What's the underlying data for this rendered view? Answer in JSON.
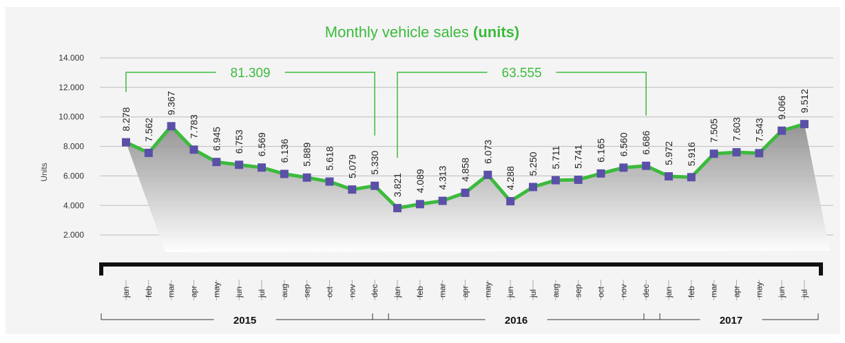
{
  "chart_data": {
    "type": "line",
    "title": "Monthly vehicle sales",
    "title_emphasis": "(units)",
    "y_label": "Units",
    "categories": [
      "jan",
      "feb",
      "mar",
      "apr",
      "may",
      "jun",
      "jul",
      "aug",
      "sep",
      "oct",
      "nov",
      "dec",
      "jan",
      "feb",
      "mar",
      "apr",
      "may",
      "jun",
      "jul",
      "aug",
      "sep",
      "oct",
      "nov",
      "dec",
      "jan",
      "feb",
      "mar",
      "apr",
      "may",
      "jun",
      "jul"
    ],
    "series": [
      {
        "name": "Units",
        "color": "#3dba3d",
        "marker_color": "#5a50a8",
        "values": [
          8278,
          7562,
          9367,
          7783,
          6945,
          6753,
          6569,
          6136,
          5889,
          5618,
          5079,
          5330,
          3821,
          4089,
          4313,
          4858,
          6073,
          4288,
          5250,
          5711,
          5741,
          6165,
          6560,
          6686,
          5972,
          5916,
          7505,
          7603,
          7543,
          9066,
          9512
        ],
        "value_labels": [
          "8.278",
          "7.562",
          "9.367",
          "7.783",
          "6.945",
          "6.753",
          "6.569",
          "6.136",
          "5.889",
          "5.618",
          "5.079",
          "5.330",
          "3.821",
          "4.089",
          "4.313",
          "4.858",
          "6.073",
          "4.288",
          "5.250",
          "5.711",
          "5.741",
          "6.165",
          "6.560",
          "6.686",
          "5.972",
          "5.916",
          "7.505",
          "7.603",
          "7.543",
          "9.066",
          "9.512"
        ]
      }
    ],
    "ylim": [
      0,
      14000
    ],
    "yticks": [
      {
        "value": 2000,
        "label": "2.000"
      },
      {
        "value": 4000,
        "label": "4.000"
      },
      {
        "value": 6000,
        "label": "6.000"
      },
      {
        "value": 8000,
        "label": "8.000"
      },
      {
        "value": 10000,
        "label": "10.000"
      },
      {
        "value": 12000,
        "label": "12.000"
      },
      {
        "value": 14000,
        "label": "14.000"
      }
    ],
    "grid": true,
    "x_groups": [
      {
        "label": "2015",
        "span": [
          0,
          11
        ]
      },
      {
        "label": "2016",
        "span": [
          12,
          23
        ]
      },
      {
        "label": "2017",
        "span": [
          24,
          30
        ]
      }
    ],
    "annotations": [
      {
        "label": "81.309",
        "span": [
          0,
          11
        ]
      },
      {
        "label": "63.555",
        "span": [
          12,
          23
        ]
      }
    ]
  }
}
